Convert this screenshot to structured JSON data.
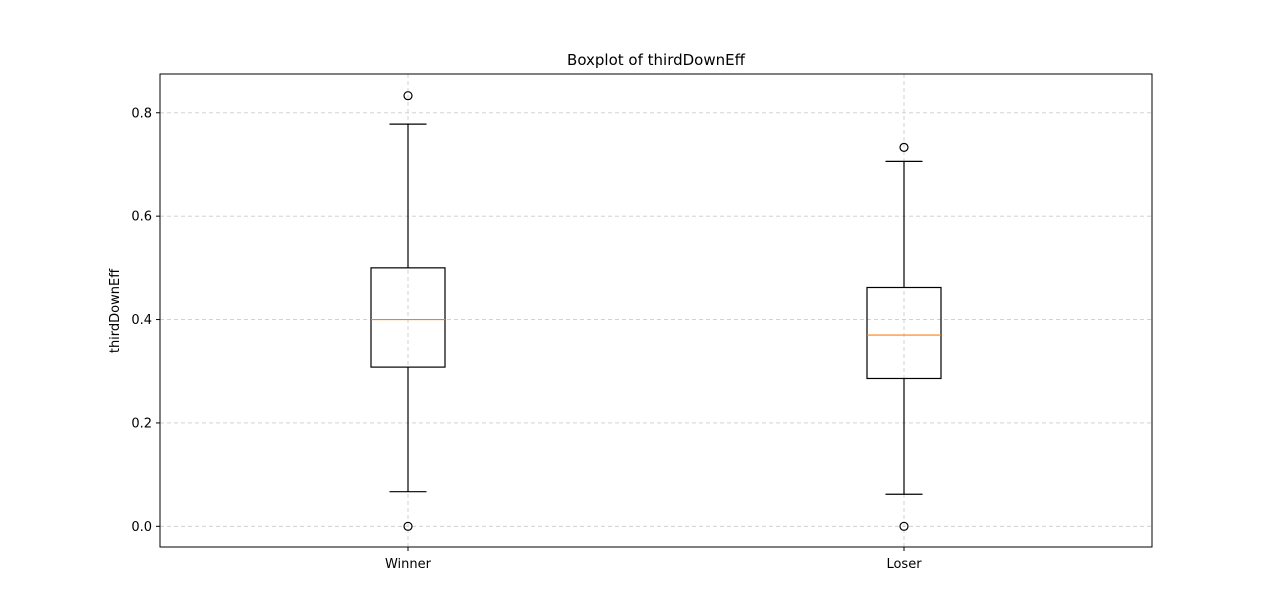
{
  "chart_data": {
    "type": "box",
    "title": "Boxplot of thirdDownEff",
    "xlabel": "",
    "ylabel": "thirdDownEff",
    "categories": [
      "Winner",
      "Loser"
    ],
    "ylim": [
      -0.04,
      0.875
    ],
    "yticks": [
      0.0,
      0.2,
      0.4,
      0.6,
      0.8
    ],
    "ytick_labels": [
      "0.0",
      "0.2",
      "0.4",
      "0.6",
      "0.8"
    ],
    "grid": true,
    "boxes": [
      {
        "category": "Winner",
        "whisker_low": 0.067,
        "q1": 0.308,
        "median": 0.4,
        "q3": 0.5,
        "whisker_high": 0.778,
        "outliers": [
          0.0,
          0.833
        ]
      },
      {
        "category": "Loser",
        "whisker_low": 0.062,
        "q1": 0.286,
        "median": 0.37,
        "q3": 0.462,
        "whisker_high": 0.706,
        "outliers": [
          0.0,
          0.733
        ]
      }
    ],
    "colors": {
      "box": "#000000",
      "median": "#ff7f0e",
      "grid": "#cccccc"
    }
  }
}
